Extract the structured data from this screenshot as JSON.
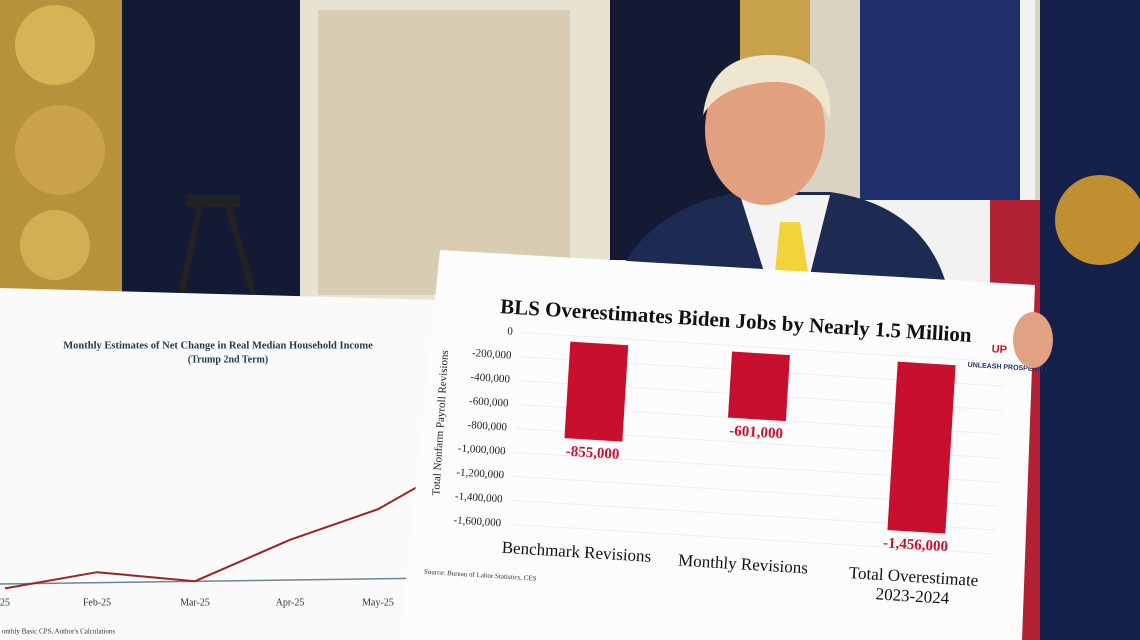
{
  "chart_data": [
    {
      "type": "bar",
      "title": "BLS Overestimates Biden Jobs by Nearly 1.5 Million",
      "ylabel": "Total Nonfarm Payroll Revisions",
      "categories": [
        "Benchmark Revisions",
        "Monthly Revisions",
        "Total Overestimate\n2023-2024"
      ],
      "values": [
        -855000,
        -601000,
        -1456000
      ],
      "value_labels": [
        "-855,000",
        "-601,000",
        "-1,456,000"
      ],
      "color": "#c8102e",
      "ylim": [
        -1600000,
        0
      ],
      "yticks": [
        0,
        {
          "value": -200000,
          "label": "-200,000"
        },
        {
          "value": -400000,
          "label": "-400,000"
        },
        {
          "value": -600000,
          "label": "-600,000"
        },
        {
          "value": -800000,
          "label": "-800,000"
        },
        {
          "value": -1000000,
          "label": "-1,000,000"
        },
        {
          "value": -1200000,
          "label": "-1,200,000"
        },
        {
          "value": -1400000,
          "label": "-1,400,000"
        },
        {
          "value": -1600000,
          "label": "-1,600,000"
        }
      ],
      "grid": true,
      "source": "Source: Bureau of Labor Statistics, CES"
    },
    {
      "type": "line",
      "title": "Monthly Estimates of Net Change in Real Median Household Income",
      "subtitle": "(Trump 2nd Term)",
      "categories": [
        "25",
        "Feb-25",
        "Mar-25",
        "Apr-25",
        "May-25",
        null
      ],
      "values": [
        4,
        22,
        12,
        58,
        92,
        150
      ],
      "color": "#9b2226",
      "ylim": [
        0,
        200
      ],
      "source": "onthly Basic CPS, Author's Calculations"
    }
  ],
  "logo": {
    "mark": "UP",
    "text": "UNLEASH PROSPERITY"
  }
}
